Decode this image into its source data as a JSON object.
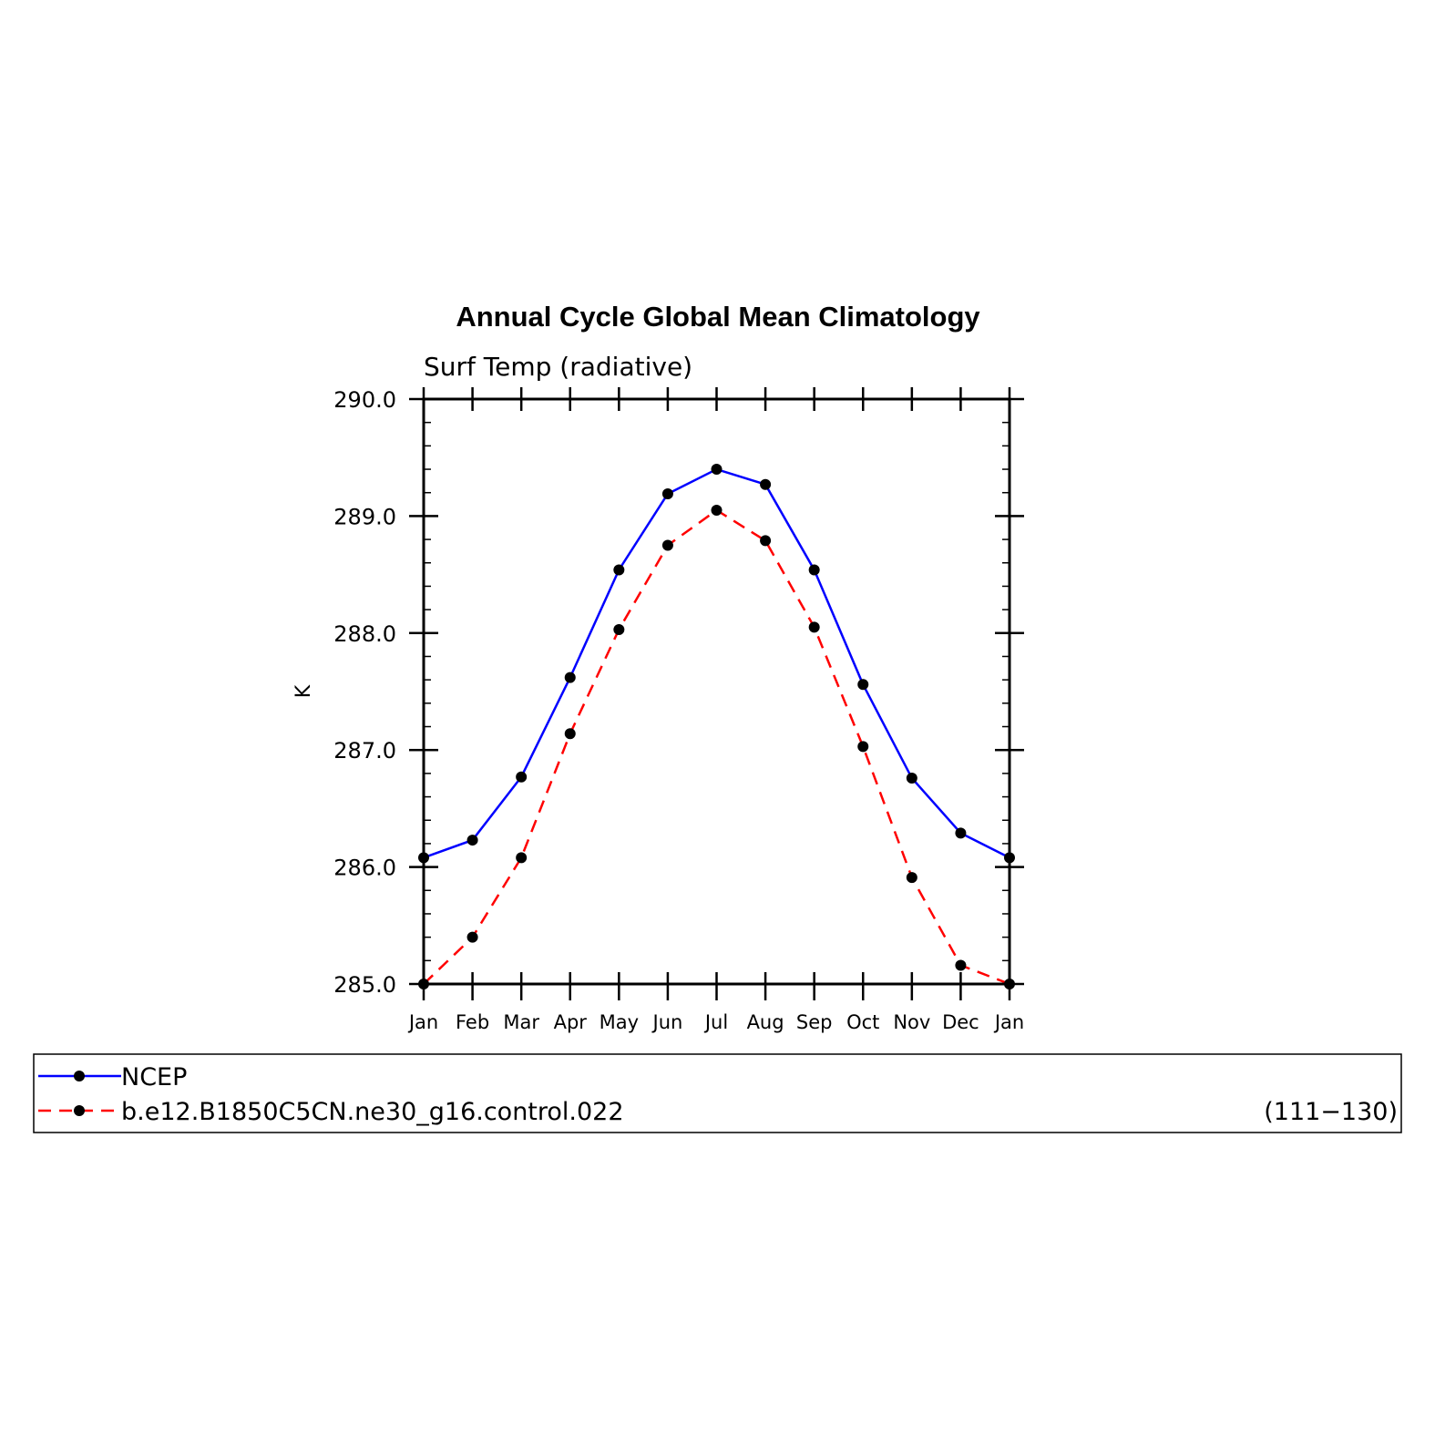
{
  "chart_data": {
    "type": "line",
    "title": "Annual Cycle Global Mean Climatology",
    "subtitle": "Surf Temp (radiative)",
    "xlabel": "",
    "ylabel": "K",
    "categories": [
      "Jan",
      "Feb",
      "Mar",
      "Apr",
      "May",
      "Jun",
      "Jul",
      "Aug",
      "Sep",
      "Oct",
      "Nov",
      "Dec",
      "Jan"
    ],
    "ylim": [
      285.0,
      290.0
    ],
    "yticks": [
      "285.0",
      "286.0",
      "287.0",
      "288.0",
      "289.0",
      "290.0"
    ],
    "series": [
      {
        "name": "NCEP",
        "color": "#0000ff",
        "dash": "solid",
        "values": [
          286.08,
          286.23,
          286.77,
          287.62,
          288.54,
          289.19,
          289.4,
          289.27,
          288.54,
          287.56,
          286.76,
          286.29,
          286.08
        ]
      },
      {
        "name": "b.e12.B1850C5CN.ne30_g16.control.022",
        "color": "#ff0000",
        "dash": "dashed",
        "values": [
          285.0,
          285.4,
          286.08,
          287.14,
          288.03,
          288.75,
          289.05,
          288.79,
          288.05,
          287.03,
          285.91,
          285.16,
          285.0
        ]
      }
    ],
    "marker_color": "#000000",
    "grid": false,
    "legend": {
      "placement": "bottom",
      "note": "(111−130)"
    }
  }
}
